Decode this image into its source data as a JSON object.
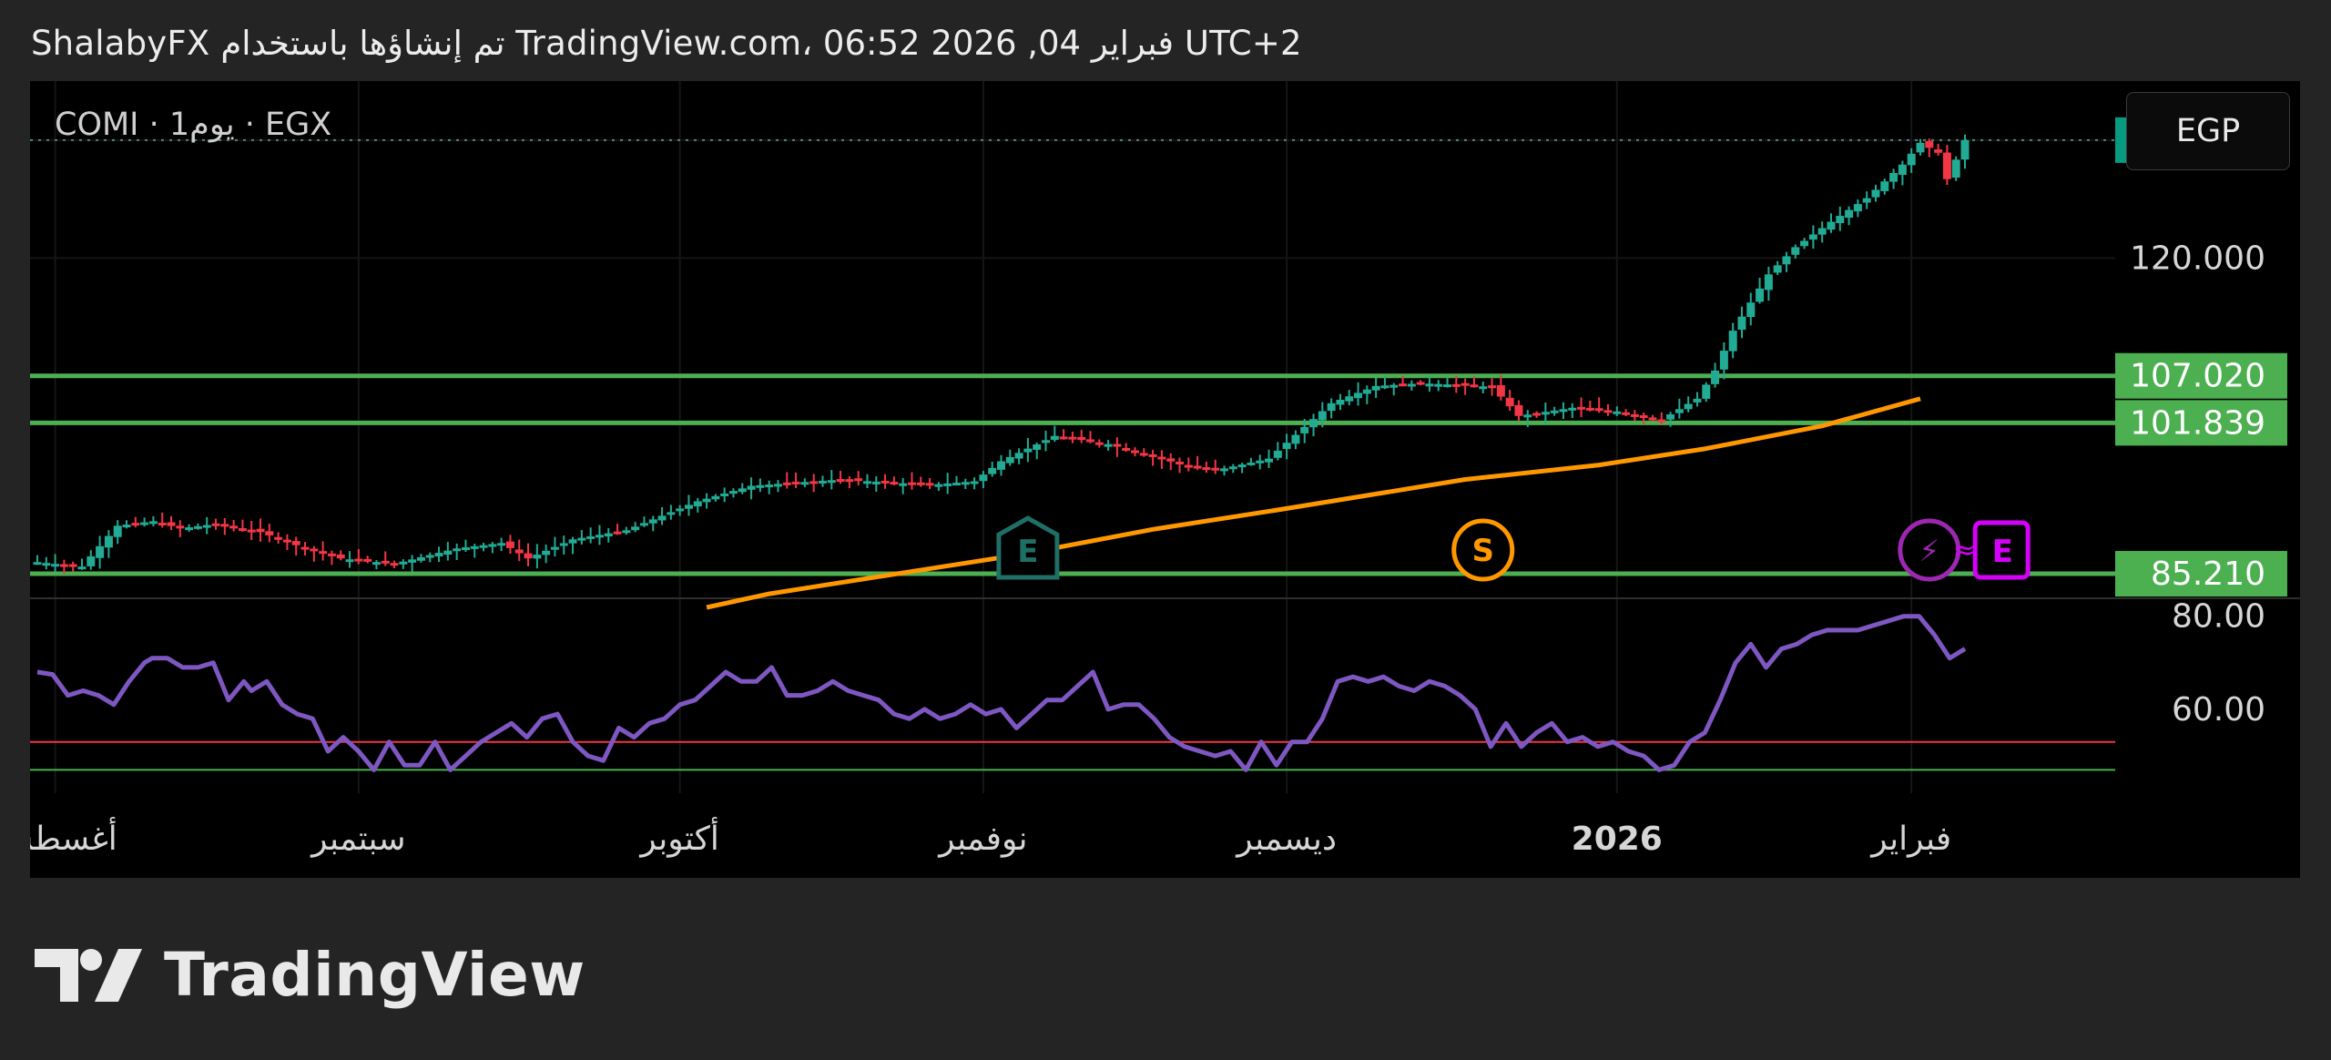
{
  "header": {
    "caption": "ShalabyFX تم إنشاؤها باستخدام TradingView.com، 06:52 2026 ,04 فبراير UTC+2"
  },
  "symbol_label": "COMI · 1يوم · EGX",
  "currency": "EGP",
  "brand": "TradingView",
  "colors": {
    "background": "#000000",
    "up": "#22ab94",
    "down": "#f23645",
    "support": "#4caf50",
    "moving_average": "#ff9800",
    "rsi": "#7e57c2",
    "rsi_upper_line": "#f23645",
    "rsi_lower_line": "#4caf50",
    "last_price": "#089981",
    "earnings_badge": "#1f6f66",
    "split_badge": "#ff9800",
    "dividend_badge": "#9c27b0",
    "news_badge": "#d500f9"
  },
  "chart_data": [
    {
      "type": "candlestick",
      "ylim": [
        81.5,
        136.5
      ],
      "last_price": "133.000",
      "y_ticks": [
        "120.000"
      ],
      "support_levels": [
        {
          "value": 107.02,
          "label": "107.020"
        },
        {
          "value": 101.839,
          "label": "101.839"
        },
        {
          "value": 85.21,
          "label": "85.210"
        }
      ],
      "x_ticks": [
        {
          "label": "أغسطس",
          "bold": false
        },
        {
          "label": "سبتمبر",
          "bold": false
        },
        {
          "label": "أكتوبر",
          "bold": false
        },
        {
          "label": "نوفمبر",
          "bold": false
        },
        {
          "label": "ديسمبر",
          "bold": false
        },
        {
          "label": "2026",
          "bold": true
        },
        {
          "label": "فبراير",
          "bold": false
        }
      ],
      "x_tick_index": [
        2,
        36,
        72,
        106,
        140,
        177,
        210
      ],
      "price_path": [
        [
          0,
          86.5
        ],
        [
          3,
          86.2
        ],
        [
          5,
          86.0
        ],
        [
          9,
          90.5
        ],
        [
          13,
          91.0
        ],
        [
          16,
          90.2
        ],
        [
          20,
          90.7
        ],
        [
          25,
          89.8
        ],
        [
          30,
          88.0
        ],
        [
          34,
          86.9
        ],
        [
          40,
          86.3
        ],
        [
          47,
          88.0
        ],
        [
          52,
          88.6
        ],
        [
          55,
          86.9
        ],
        [
          60,
          89.0
        ],
        [
          66,
          90.0
        ],
        [
          74,
          93.2
        ],
        [
          80,
          94.9
        ],
        [
          90,
          95.6
        ],
        [
          100,
          95.0
        ],
        [
          105,
          95.4
        ],
        [
          108,
          97.6
        ],
        [
          114,
          100.4
        ],
        [
          120,
          99.5
        ],
        [
          128,
          97.3
        ],
        [
          132,
          96.6
        ],
        [
          138,
          97.9
        ],
        [
          145,
          104.0
        ],
        [
          150,
          105.9
        ],
        [
          155,
          106.2
        ],
        [
          160,
          106.0
        ],
        [
          163,
          105.8
        ],
        [
          166,
          102.6
        ],
        [
          172,
          103.5
        ],
        [
          177,
          103.1
        ],
        [
          182,
          102.2
        ],
        [
          186,
          104.5
        ],
        [
          188,
          107.6
        ],
        [
          190,
          112.0
        ],
        [
          194,
          118.2
        ],
        [
          197,
          121.2
        ],
        [
          201,
          124.0
        ],
        [
          205,
          126.6
        ],
        [
          209,
          130.3
        ],
        [
          211,
          132.7
        ],
        [
          213,
          131.6
        ],
        [
          214,
          128.7
        ],
        [
          216,
          133.0
        ]
      ],
      "moving_average": [
        [
          75,
          81.5
        ],
        [
          82,
          83.0
        ],
        [
          95,
          85.0
        ],
        [
          110,
          87.3
        ],
        [
          125,
          90.1
        ],
        [
          140,
          92.4
        ],
        [
          160,
          95.6
        ],
        [
          175,
          97.2
        ],
        [
          187,
          99.0
        ],
        [
          200,
          101.5
        ],
        [
          211,
          104.5
        ]
      ],
      "event_badges": [
        {
          "label": "E",
          "type": "earnings",
          "index": 111
        },
        {
          "label": "S",
          "type": "split",
          "index": 162
        },
        {
          "label": "⚡",
          "type": "dividend",
          "index": 212
        },
        {
          "label": "E",
          "type": "news",
          "index": 220
        }
      ]
    },
    {
      "type": "line",
      "series": [
        {
          "values": []
        }
      ],
      "ylim": [
        42,
        81.5
      ],
      "y_ticks": [
        {
          "value": 80,
          "label": "80.00"
        },
        {
          "value": 60,
          "label": "60.00"
        }
      ],
      "levels": [
        53,
        47
      ],
      "rsi_path": [
        [
          0,
          68
        ],
        [
          2,
          67.5
        ],
        [
          4,
          63
        ],
        [
          6,
          64
        ],
        [
          8,
          63
        ],
        [
          10,
          61
        ],
        [
          12,
          66
        ],
        [
          14,
          70
        ],
        [
          15,
          71
        ],
        [
          17,
          71
        ],
        [
          19,
          69
        ],
        [
          21,
          69
        ],
        [
          23,
          70
        ],
        [
          25,
          62
        ],
        [
          27,
          66
        ],
        [
          28,
          64
        ],
        [
          30,
          66
        ],
        [
          32,
          61
        ],
        [
          34,
          59
        ],
        [
          36,
          58
        ],
        [
          38,
          51
        ],
        [
          40,
          54
        ],
        [
          42,
          51
        ],
        [
          44,
          47
        ],
        [
          46,
          53
        ],
        [
          48,
          48
        ],
        [
          50,
          48
        ],
        [
          52,
          53
        ],
        [
          54,
          47
        ],
        [
          56,
          50
        ],
        [
          58,
          53
        ],
        [
          60,
          55
        ],
        [
          62,
          57
        ],
        [
          64,
          54
        ],
        [
          66,
          58
        ],
        [
          68,
          59
        ],
        [
          70,
          53
        ],
        [
          72,
          50
        ],
        [
          74,
          49
        ],
        [
          76,
          56
        ],
        [
          78,
          54
        ],
        [
          80,
          57
        ],
        [
          82,
          58
        ],
        [
          84,
          61
        ],
        [
          86,
          62
        ],
        [
          88,
          65
        ],
        [
          90,
          68
        ],
        [
          92,
          66
        ],
        [
          94,
          66
        ],
        [
          96,
          69
        ],
        [
          98,
          63
        ],
        [
          100,
          63
        ],
        [
          102,
          64
        ],
        [
          104,
          66
        ],
        [
          106,
          64
        ],
        [
          108,
          63
        ],
        [
          110,
          62
        ],
        [
          112,
          59
        ],
        [
          114,
          58
        ],
        [
          116,
          60
        ],
        [
          118,
          58
        ],
        [
          120,
          59
        ],
        [
          122,
          61
        ],
        [
          124,
          59
        ],
        [
          126,
          60
        ],
        [
          128,
          56
        ],
        [
          130,
          59
        ],
        [
          132,
          62
        ],
        [
          134,
          62
        ],
        [
          136,
          65
        ],
        [
          138,
          68
        ],
        [
          140,
          60
        ],
        [
          142,
          61
        ],
        [
          144,
          61
        ],
        [
          146,
          58
        ],
        [
          148,
          54
        ],
        [
          150,
          52
        ],
        [
          152,
          51
        ],
        [
          154,
          50
        ],
        [
          156,
          51
        ],
        [
          158,
          47
        ],
        [
          160,
          53
        ],
        [
          162,
          48
        ],
        [
          164,
          53
        ],
        [
          166,
          53
        ],
        [
          168,
          58
        ],
        [
          170,
          66
        ],
        [
          172,
          67
        ],
        [
          174,
          66
        ],
        [
          176,
          67
        ],
        [
          178,
          65
        ],
        [
          180,
          64
        ],
        [
          182,
          66
        ],
        [
          184,
          65
        ],
        [
          186,
          63
        ],
        [
          188,
          60
        ],
        [
          190,
          52
        ],
        [
          192,
          57
        ],
        [
          194,
          52
        ],
        [
          196,
          55
        ],
        [
          198,
          57
        ],
        [
          200,
          53
        ],
        [
          202,
          54
        ],
        [
          204,
          52
        ],
        [
          206,
          53
        ],
        [
          208,
          51
        ],
        [
          210,
          50
        ],
        [
          212,
          47
        ],
        [
          214,
          48
        ],
        [
          216,
          53
        ],
        [
          218,
          55
        ],
        [
          220,
          62
        ],
        [
          222,
          70
        ],
        [
          224,
          74
        ],
        [
          226,
          69
        ],
        [
          228,
          73
        ],
        [
          230,
          74
        ],
        [
          232,
          76
        ],
        [
          234,
          77
        ],
        [
          236,
          77
        ],
        [
          238,
          77
        ],
        [
          240,
          78
        ],
        [
          242,
          79
        ],
        [
          244,
          80
        ],
        [
          246,
          80
        ],
        [
          248,
          76
        ],
        [
          250,
          71
        ],
        [
          252,
          73
        ]
      ]
    }
  ]
}
